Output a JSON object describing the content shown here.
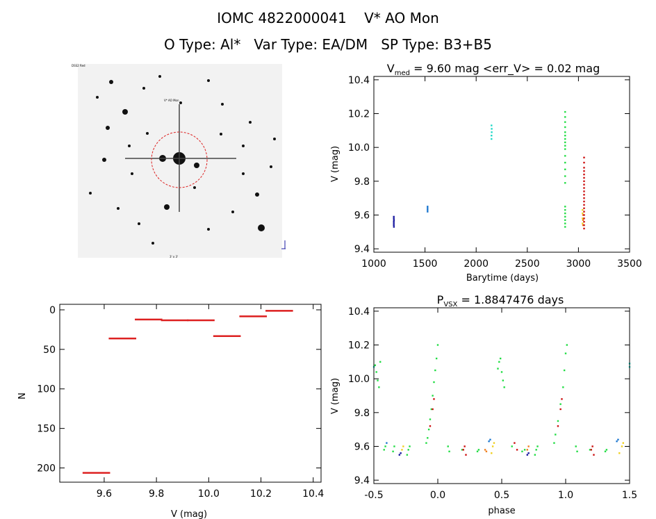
{
  "header": {
    "title": "IOMC 4822000041    V* AO Mon",
    "subtitle": "O Type: Al*   Var Type: EA/DM   SP Type: B3+B5"
  },
  "image_panel": {
    "top_left_label": "DSS2 Red",
    "target_label": "V* AO Mon",
    "bottom_label": "3' x 3'",
    "background": "#f2f2f2",
    "circle_color": "#dd2222"
  },
  "colors": {
    "dark_blue": "#1a1aa0",
    "blue": "#1e78d0",
    "cyan": "#20d8c8",
    "green": "#22dd44",
    "yellow": "#f0d020",
    "orange": "#f08020",
    "red": "#cc1010",
    "hist": "#dd2020"
  },
  "chart_data": [
    {
      "id": "lightcurve",
      "type": "scatter",
      "title_main": "V",
      "title_sub": "med",
      "title_rest": " = 9.60 mag <err_V> = 0.02 mag",
      "xlabel": "Barytime (days)",
      "ylabel": "V (mag)",
      "xlim": [
        1000,
        3500
      ],
      "ylim": [
        10.42,
        9.38
      ],
      "xticks": [
        1000,
        1500,
        2000,
        2500,
        3000,
        3500
      ],
      "yticks": [
        9.4,
        9.6,
        9.8,
        10.0,
        10.2,
        10.4
      ],
      "series": [
        {
          "color": "dark_blue",
          "points": [
            [
              1195,
              9.54
            ],
            [
              1195,
              9.55
            ],
            [
              1195,
              9.56
            ],
            [
              1195,
              9.58
            ],
            [
              1195,
              9.59
            ],
            [
              1196,
              9.53
            ],
            [
              1196,
              9.57
            ]
          ]
        },
        {
          "color": "blue",
          "points": [
            [
              1525,
              9.62
            ],
            [
              1525,
              9.63
            ],
            [
              1525,
              9.64
            ],
            [
              1525,
              9.65
            ]
          ]
        },
        {
          "color": "cyan",
          "points": [
            [
              2150,
              10.05
            ],
            [
              2150,
              10.07
            ],
            [
              2152,
              10.09
            ],
            [
              2152,
              10.11
            ],
            [
              2150,
              10.13
            ]
          ]
        },
        {
          "color": "green",
          "points": [
            [
              2870,
              9.53
            ],
            [
              2870,
              9.55
            ],
            [
              2870,
              9.57
            ],
            [
              2870,
              9.59
            ],
            [
              2870,
              9.61
            ],
            [
              2870,
              9.63
            ],
            [
              2870,
              9.65
            ],
            [
              2870,
              9.79
            ],
            [
              2870,
              9.83
            ],
            [
              2870,
              9.87
            ],
            [
              2870,
              9.91
            ],
            [
              2870,
              9.95
            ],
            [
              2870,
              9.99
            ],
            [
              2870,
              10.01
            ],
            [
              2870,
              10.03
            ],
            [
              2870,
              10.05
            ],
            [
              2870,
              10.07
            ],
            [
              2870,
              10.09
            ],
            [
              2870,
              10.12
            ],
            [
              2870,
              10.15
            ],
            [
              2870,
              10.18
            ],
            [
              2870,
              10.21
            ]
          ]
        },
        {
          "color": "yellow",
          "points": [
            [
              3040,
              9.55
            ],
            [
              3040,
              9.58
            ],
            [
              3040,
              9.61
            ],
            [
              3040,
              9.63
            ]
          ]
        },
        {
          "color": "orange",
          "points": [
            [
              3045,
              9.54
            ],
            [
              3045,
              9.57
            ],
            [
              3045,
              9.6
            ]
          ]
        },
        {
          "color": "red",
          "points": [
            [
              3055,
              9.52
            ],
            [
              3055,
              9.54
            ],
            [
              3055,
              9.56
            ],
            [
              3055,
              9.58
            ],
            [
              3055,
              9.6
            ],
            [
              3055,
              9.62
            ],
            [
              3055,
              9.64
            ],
            [
              3055,
              9.66
            ],
            [
              3055,
              9.68
            ],
            [
              3055,
              9.7
            ],
            [
              3055,
              9.72
            ],
            [
              3055,
              9.74
            ],
            [
              3055,
              9.76
            ],
            [
              3055,
              9.78
            ],
            [
              3055,
              9.8
            ],
            [
              3055,
              9.82
            ],
            [
              3055,
              9.84
            ],
            [
              3055,
              9.86
            ],
            [
              3055,
              9.88
            ],
            [
              3055,
              9.91
            ],
            [
              3055,
              9.94
            ]
          ]
        }
      ]
    },
    {
      "id": "histogram",
      "type": "bar",
      "xlabel": "V (mag)",
      "ylabel": "N",
      "xlim": [
        9.43,
        10.43
      ],
      "ylim": [
        -7,
        218
      ],
      "xticks": [
        9.6,
        9.8,
        10.0,
        10.2,
        10.4
      ],
      "yticks": [
        0,
        50,
        100,
        150,
        200
      ],
      "bin_edges": [
        9.52,
        9.62,
        9.72,
        9.82,
        9.92,
        10.02,
        10.12,
        10.22,
        10.32
      ],
      "counts": [
        206,
        36,
        12,
        13,
        13,
        33,
        8,
        1
      ]
    },
    {
      "id": "phased",
      "type": "scatter",
      "title_main": "P",
      "title_sub": "VSX",
      "title_rest": " = 1.8847476 days",
      "xlabel": "phase",
      "ylabel": "V (mag)",
      "xlim": [
        -0.5,
        1.5
      ],
      "ylim": [
        10.42,
        9.38
      ],
      "xticks": [
        -0.5,
        0.0,
        0.5,
        1.0,
        1.5
      ],
      "yticks": [
        9.4,
        9.6,
        9.8,
        10.0,
        10.2,
        10.4
      ],
      "series": [
        {
          "color": "green",
          "points": [
            [
              -0.49,
              10.08
            ],
            [
              -0.48,
              10.04
            ],
            [
              -0.47,
              9.99
            ],
            [
              -0.46,
              9.95
            ],
            [
              -0.45,
              10.1
            ],
            [
              -0.42,
              9.58
            ],
            [
              -0.41,
              9.6
            ],
            [
              -0.35,
              9.57
            ],
            [
              -0.34,
              9.6
            ],
            [
              -0.24,
              9.55
            ],
            [
              -0.23,
              9.58
            ],
            [
              -0.22,
              9.6
            ],
            [
              -0.09,
              9.62
            ],
            [
              -0.08,
              9.65
            ],
            [
              -0.07,
              9.7
            ],
            [
              -0.06,
              9.76
            ],
            [
              -0.05,
              9.82
            ],
            [
              -0.04,
              9.9
            ],
            [
              -0.03,
              9.98
            ],
            [
              -0.02,
              10.05
            ],
            [
              -0.01,
              10.12
            ],
            [
              0.0,
              10.2
            ],
            [
              0.08,
              9.6
            ],
            [
              0.09,
              9.57
            ],
            [
              0.19,
              9.58
            ],
            [
              0.31,
              9.57
            ],
            [
              0.32,
              9.58
            ],
            [
              0.47,
              10.06
            ],
            [
              0.48,
              10.1
            ],
            [
              0.49,
              10.12
            ],
            [
              0.5,
              10.04
            ],
            [
              0.51,
              9.99
            ],
            [
              0.52,
              9.95
            ],
            [
              0.58,
              9.6
            ],
            [
              0.66,
              9.57
            ],
            [
              0.68,
              9.58
            ],
            [
              0.76,
              9.55
            ],
            [
              0.77,
              9.58
            ],
            [
              0.78,
              9.6
            ],
            [
              0.91,
              9.62
            ],
            [
              0.92,
              9.67
            ],
            [
              0.94,
              9.75
            ],
            [
              0.96,
              9.85
            ],
            [
              0.98,
              9.95
            ],
            [
              0.99,
              10.05
            ],
            [
              1.0,
              10.15
            ],
            [
              1.01,
              10.2
            ],
            [
              1.08,
              9.6
            ],
            [
              1.09,
              9.57
            ],
            [
              1.19,
              9.58
            ],
            [
              1.31,
              9.57
            ],
            [
              1.32,
              9.58
            ]
          ]
        },
        {
          "color": "red",
          "points": [
            [
              -0.06,
              9.72
            ],
            [
              -0.04,
              9.82
            ],
            [
              -0.03,
              9.88
            ],
            [
              0.2,
              9.58
            ],
            [
              0.21,
              9.6
            ],
            [
              0.22,
              9.55
            ],
            [
              0.6,
              9.62
            ],
            [
              0.62,
              9.58
            ],
            [
              0.94,
              9.72
            ],
            [
              0.96,
              9.82
            ],
            [
              0.97,
              9.88
            ],
            [
              1.2,
              9.58
            ],
            [
              1.21,
              9.6
            ],
            [
              1.22,
              9.55
            ]
          ]
        },
        {
          "color": "yellow",
          "points": [
            [
              -0.28,
              9.58
            ],
            [
              -0.27,
              9.6
            ],
            [
              0.42,
              9.56
            ],
            [
              0.43,
              9.6
            ],
            [
              0.44,
              9.62
            ],
            [
              1.42,
              9.56
            ],
            [
              1.44,
              9.6
            ],
            [
              1.45,
              9.62
            ]
          ]
        },
        {
          "color": "orange",
          "points": [
            [
              0.37,
              9.58
            ],
            [
              0.38,
              9.57
            ],
            [
              0.7,
              9.58
            ],
            [
              0.71,
              9.6
            ]
          ]
        },
        {
          "color": "dark_blue",
          "points": [
            [
              -0.3,
              9.55
            ],
            [
              -0.29,
              9.56
            ],
            [
              0.7,
              9.55
            ],
            [
              0.71,
              9.56
            ]
          ]
        },
        {
          "color": "blue",
          "points": [
            [
              -0.4,
              9.62
            ],
            [
              0.4,
              9.63
            ],
            [
              0.41,
              9.64
            ],
            [
              1.4,
              9.63
            ],
            [
              1.41,
              9.64
            ]
          ]
        },
        {
          "color": "cyan",
          "points": [
            [
              -0.5,
              10.07
            ],
            [
              1.5,
              10.07
            ],
            [
              1.5,
              10.09
            ]
          ]
        }
      ]
    }
  ]
}
